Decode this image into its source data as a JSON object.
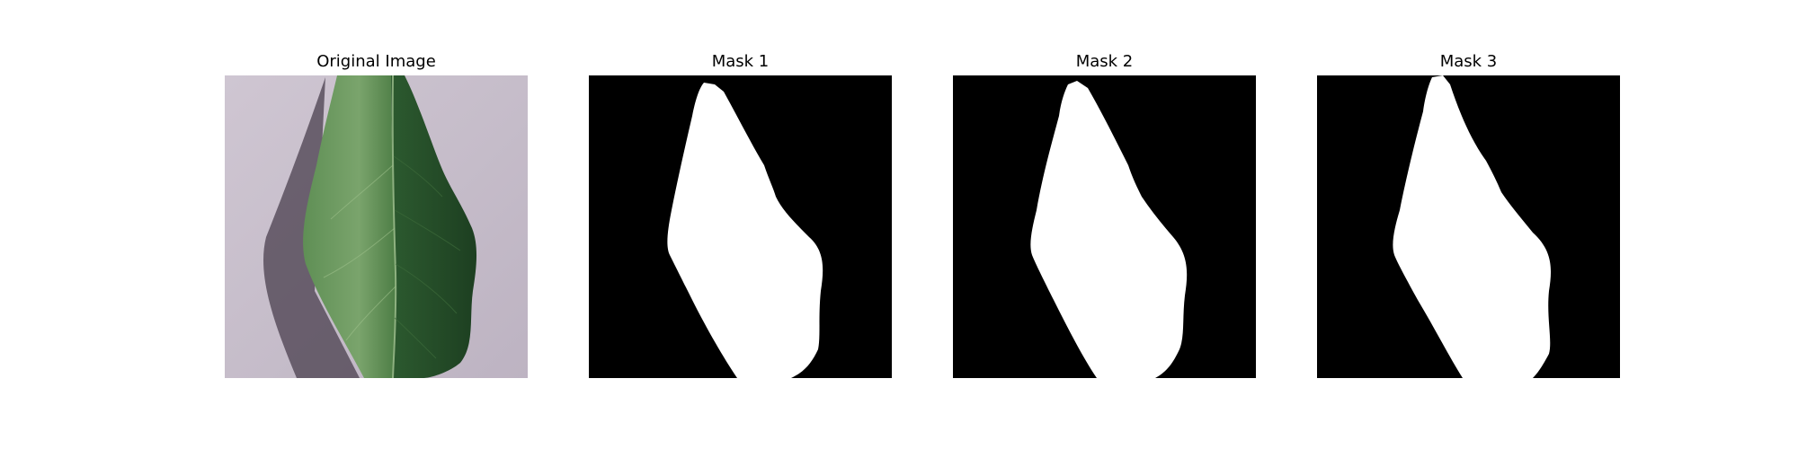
{
  "panels": [
    {
      "title": "Original Image",
      "content": "leaf-photo"
    },
    {
      "title": "Mask 1",
      "content": "segmentation-mask"
    },
    {
      "title": "Mask 2",
      "content": "segmentation-mask"
    },
    {
      "title": "Mask 3",
      "content": "segmentation-mask"
    }
  ],
  "colors": {
    "background": "#ffffff",
    "mask_background": "#000000",
    "mask_foreground": "#ffffff",
    "paper": "#c9c0cc",
    "leaf_dark": "#1f4a26",
    "leaf_mid": "#3f7a3c",
    "leaf_light": "#7fa870",
    "shadow": "#4a3f4e"
  }
}
